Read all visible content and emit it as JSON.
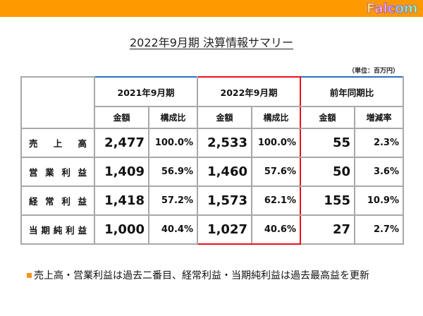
{
  "header": {
    "logo_text": "Falcom",
    "bar_color": "#ff9900"
  },
  "title": "2022年9月期 決算情報サマリー",
  "unit_label": "（単位：百万円）",
  "table": {
    "periods": [
      {
        "label": "2021年9月期",
        "highlight": false
      },
      {
        "label": "2022年9月期",
        "highlight": true,
        "highlight_color": "#e8101a"
      },
      {
        "label": "前年同期比",
        "highlight": false
      }
    ],
    "subheaders": [
      "金額",
      "構成比",
      "金額",
      "構成比",
      "金額",
      "増減率"
    ],
    "rows": [
      {
        "label": "売上高",
        "label_display": "売　上　高",
        "fy2021_amount": "2,477",
        "fy2021_ratio": "100.0%",
        "fy2022_amount": "2,533",
        "fy2022_ratio": "100.0%",
        "yoy_amount": "55",
        "yoy_rate": "2.3%"
      },
      {
        "label": "営業利益",
        "label_display": "営業利益",
        "fy2021_amount": "1,409",
        "fy2021_ratio": "56.9%",
        "fy2022_amount": "1,460",
        "fy2022_ratio": "57.6%",
        "yoy_amount": "50",
        "yoy_rate": "3.6%"
      },
      {
        "label": "経常利益",
        "label_display": "経常利益",
        "fy2021_amount": "1,418",
        "fy2021_ratio": "57.2%",
        "fy2022_amount": "1,573",
        "fy2022_ratio": "62.1%",
        "yoy_amount": "155",
        "yoy_rate": "10.9%"
      },
      {
        "label": "当期純利益",
        "label_display": "当期純利益",
        "fy2021_amount": "1,000",
        "fy2021_ratio": "40.4%",
        "fy2022_amount": "1,027",
        "fy2022_ratio": "40.6%",
        "yoy_amount": "27",
        "yoy_rate": "2.7%"
      }
    ],
    "border_color": "#2a6fc6",
    "grid_color": "#a8a8a8"
  },
  "note": {
    "bullet_color": "#f7941d",
    "text": "売上高・営業利益は過去二番目、経常利益・当期純利益は過去最高益を更新"
  }
}
